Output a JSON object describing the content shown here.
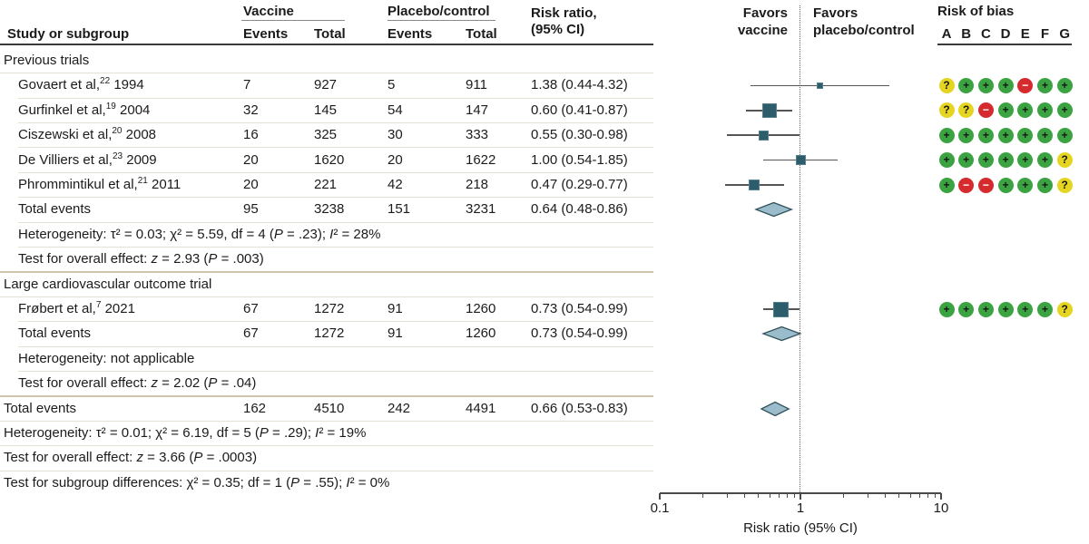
{
  "header": {
    "study_col": "Study or subgroup",
    "vaccine_group": "Vaccine",
    "placebo_group": "Placebo/control",
    "events": "Events",
    "total": "Total",
    "rr_line1": "Risk ratio,",
    "rr_line2": "(95% CI)",
    "favors_vaccine_l1": "Favors",
    "favors_vaccine_l2": "vaccine",
    "favors_placebo_l1": "Favors",
    "favors_placebo_l2": "placebo/control",
    "rob_title": "Risk of bias",
    "rob_columns": [
      "A",
      "B",
      "C",
      "D",
      "E",
      "F",
      "G"
    ]
  },
  "axis": {
    "min": 0.1,
    "max": 10,
    "scale": "log",
    "major_ticks": [
      0.1,
      1,
      10
    ],
    "tick_labels": [
      "0.1",
      "1",
      "10"
    ],
    "label": "Risk ratio (95% CI)"
  },
  "chart_data": {
    "type": "forest",
    "x_scale": "log",
    "xlim": [
      0.1,
      10
    ],
    "xlabel": "Risk ratio (95% CI)",
    "reference_line": 1,
    "rows": [
      {
        "kind": "group",
        "label": "Previous trials"
      },
      {
        "kind": "study",
        "indent": true,
        "label": "Govaert et al,",
        "ref": "22",
        "year": "1994",
        "vaccine_events": "7",
        "vaccine_total": "927",
        "placebo_events": "5",
        "placebo_total": "911",
        "rr_text": "1.38 (0.44-4.32)",
        "rr": 1.38,
        "ci_lo": 0.44,
        "ci_hi": 4.32,
        "marker_size": 7,
        "bias": [
          "unclear",
          "low",
          "low",
          "low",
          "high",
          "low",
          "low"
        ]
      },
      {
        "kind": "study",
        "indent": true,
        "label": "Gurfinkel et al,",
        "ref": "19",
        "year": "2004",
        "vaccine_events": "32",
        "vaccine_total": "145",
        "placebo_events": "54",
        "placebo_total": "147",
        "rr_text": "0.60 (0.41-0.87)",
        "rr": 0.6,
        "ci_lo": 0.41,
        "ci_hi": 0.87,
        "marker_size": 16,
        "bias": [
          "unclear",
          "unclear",
          "high",
          "low",
          "low",
          "low",
          "low"
        ]
      },
      {
        "kind": "study",
        "indent": true,
        "label": "Ciszewski et al,",
        "ref": "20",
        "year": "2008",
        "vaccine_events": "16",
        "vaccine_total": "325",
        "placebo_events": "30",
        "placebo_total": "333",
        "rr_text": "0.55 (0.30-0.98)",
        "rr": 0.55,
        "ci_lo": 0.3,
        "ci_hi": 0.98,
        "marker_size": 11,
        "bias": [
          "low",
          "low",
          "low",
          "low",
          "low",
          "low",
          "low"
        ]
      },
      {
        "kind": "study",
        "indent": true,
        "label": "De Villiers et al,",
        "ref": "23",
        "year": "2009",
        "vaccine_events": "20",
        "vaccine_total": "1620",
        "placebo_events": "20",
        "placebo_total": "1622",
        "rr_text": "1.00 (0.54-1.85)",
        "rr": 1.0,
        "ci_lo": 0.54,
        "ci_hi": 1.85,
        "marker_size": 11,
        "bias": [
          "low",
          "low",
          "low",
          "low",
          "low",
          "low",
          "unclear"
        ]
      },
      {
        "kind": "study",
        "indent": true,
        "label": "Phrommintikul et al,",
        "ref": "21",
        "year": "2011",
        "vaccine_events": "20",
        "vaccine_total": "221",
        "placebo_events": "42",
        "placebo_total": "218",
        "rr_text": "0.47 (0.29-0.77)",
        "rr": 0.47,
        "ci_lo": 0.29,
        "ci_hi": 0.77,
        "marker_size": 12,
        "bias": [
          "low",
          "high",
          "high",
          "low",
          "low",
          "low",
          "unclear"
        ]
      },
      {
        "kind": "total",
        "indent": true,
        "label": "Total events",
        "vaccine_events": "95",
        "vaccine_total": "3238",
        "placebo_events": "151",
        "placebo_total": "3231",
        "rr_text": "0.64 (0.48-0.86)",
        "diamond": {
          "rr": 0.64,
          "ci_lo": 0.48,
          "ci_hi": 0.86
        }
      },
      {
        "kind": "stat",
        "indent": true,
        "label": "Heterogeneity: τ² = 0.03; χ² = 5.59, df = 4 (P = .23); I² = 28%"
      },
      {
        "kind": "stat",
        "indent": true,
        "label": "Test for overall effect: z = 2.93 (P = .003)"
      },
      {
        "kind": "group",
        "label": "Large cardiovascular outcome trial"
      },
      {
        "kind": "study",
        "indent": true,
        "label": "Frøbert et al,",
        "ref": "7",
        "year": "2021",
        "vaccine_events": "67",
        "vaccine_total": "1272",
        "placebo_events": "91",
        "placebo_total": "1260",
        "rr_text": "0.73 (0.54-0.99)",
        "rr": 0.73,
        "ci_lo": 0.54,
        "ci_hi": 0.99,
        "marker_size": 17,
        "bias": [
          "low",
          "low",
          "low",
          "low",
          "low",
          "low",
          "unclear"
        ]
      },
      {
        "kind": "total",
        "indent": true,
        "label": "Total events",
        "vaccine_events": "67",
        "vaccine_total": "1272",
        "placebo_events": "91",
        "placebo_total": "1260",
        "rr_text": "0.73 (0.54-0.99)",
        "diamond": {
          "rr": 0.73,
          "ci_lo": 0.54,
          "ci_hi": 0.99
        }
      },
      {
        "kind": "stat",
        "indent": true,
        "label": "Heterogeneity: not applicable"
      },
      {
        "kind": "stat",
        "indent": true,
        "label": "Test for overall effect: z = 2.02 (P = .04)"
      },
      {
        "kind": "total",
        "overall": true,
        "label": "Total events",
        "vaccine_events": "162",
        "vaccine_total": "4510",
        "placebo_events": "242",
        "placebo_total": "4491",
        "rr_text": "0.66 (0.53-0.83)",
        "diamond": {
          "rr": 0.66,
          "ci_lo": 0.53,
          "ci_hi": 0.83
        }
      },
      {
        "kind": "stat",
        "overall": true,
        "label": "Heterogeneity: τ² = 0.01; χ² = 6.19, df = 5 (P = .29); I² = 19%"
      },
      {
        "kind": "stat",
        "overall": true,
        "label": "Test for overall effect: z = 3.66 (P = .0003)"
      },
      {
        "kind": "stat",
        "overall": true,
        "label": "Test for subgroup differences: χ² = 0.35; df = 1 (P = .55); I² = 0%"
      }
    ]
  },
  "colors": {
    "text": "#1b1b1b",
    "square": "#2d5d6b",
    "square_border": "#54808e",
    "diamond_fill": "#9bbccb",
    "diamond_stroke": "#34545e",
    "ci_line": "#555555",
    "reference_dotted": "#666666",
    "rule_light": "#e6e1d5",
    "rule_strong": "#cfc5ad",
    "rule_dark": "#3b3b3b",
    "bias_low": "#3ca342",
    "bias_unclear": "#e5d522",
    "bias_high": "#d62b2e",
    "bias_low_symbol": "+",
    "bias_unclear_symbol": "?",
    "bias_high_symbol": "−"
  }
}
